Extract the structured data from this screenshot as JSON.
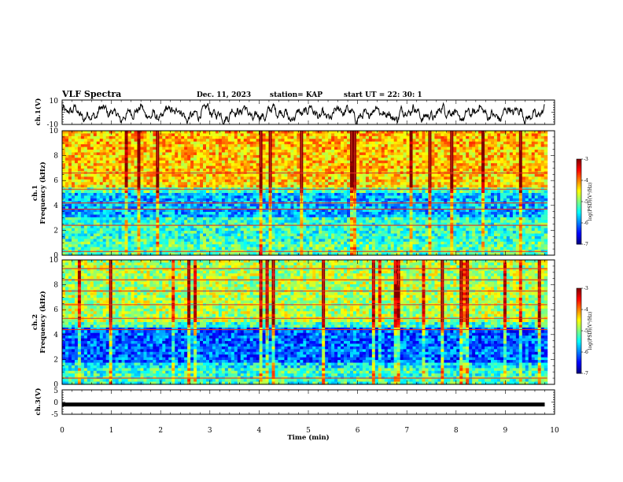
{
  "header": {
    "title": "VLF Spectra",
    "date": "Dec. 11, 2023",
    "station": "station= KAP",
    "start": "start  UT  =   22: 30: 1"
  },
  "chart_data": [
    {
      "id": "ch1-waveform",
      "type": "line",
      "ylabel": "ch.1(V)",
      "ylim": [
        -10,
        10
      ],
      "yticks": [
        "10",
        "-10"
      ],
      "x_range_min": [
        0,
        9.8
      ],
      "color": "#000000",
      "pattern": "noisy oscillating signal, amplitude mostly between -8 and 6 V"
    },
    {
      "id": "ch1-spectrogram",
      "type": "heatmap",
      "ylabel_top": "ch.1",
      "ylabel": "Frequency (kHz)",
      "ylim": [
        0,
        10
      ],
      "yticks": [
        "0",
        "2",
        "4",
        "6",
        "8",
        "10"
      ],
      "colorbar": {
        "label": "log(PSD)(V²/Hz)",
        "range": [
          -7,
          -3
        ],
        "ticks": [
          "-3",
          "-4",
          "-5",
          "-6",
          "-7"
        ]
      },
      "pattern": "high power (yellow-red) from 5.5 to 10 kHz with frequent red vertical impulses; low power (blue) band near 3-5 kHz; green-cyan below 3 kHz; red horizontal lines near 0.3, 2.4, 3.7, 4.2, 5.3 and 6.6 kHz"
    },
    {
      "id": "ch2-spectrogram",
      "type": "heatmap",
      "ylabel_top": "ch.2",
      "ylabel": "Frequency (kHz)",
      "ylim": [
        0,
        10
      ],
      "yticks": [
        "0",
        "2",
        "4",
        "6",
        "8",
        "10"
      ],
      "colorbar": {
        "label": "log(PSD)(V²/Hz)",
        "range": [
          -7,
          -3
        ],
        "ticks": [
          "-3",
          "-4",
          "-5",
          "-6",
          "-7"
        ]
      },
      "pattern": "mixed green-yellow above 5 kHz with red horizontal lines near 6.4, 7.5, 8.4, 9.3 kHz; deep blue band 1.8-4.5 kHz; green-cyan below 1.5 kHz; red vertical impulses throughout"
    },
    {
      "id": "ch3-waveform",
      "type": "line",
      "ylabel": "ch.3(V)",
      "ylim": [
        -5,
        5
      ],
      "yticks": [
        "5",
        "0",
        "-5"
      ],
      "x_range_min": [
        0,
        9.8
      ],
      "color": "#000000",
      "pattern": "thick flat band centered near -1 V"
    }
  ],
  "xaxis": {
    "label": "Time  (min)",
    "range": [
      0,
      10
    ],
    "ticks": [
      "0",
      "1",
      "2",
      "3",
      "4",
      "5",
      "6",
      "7",
      "8",
      "9",
      "10"
    ]
  }
}
